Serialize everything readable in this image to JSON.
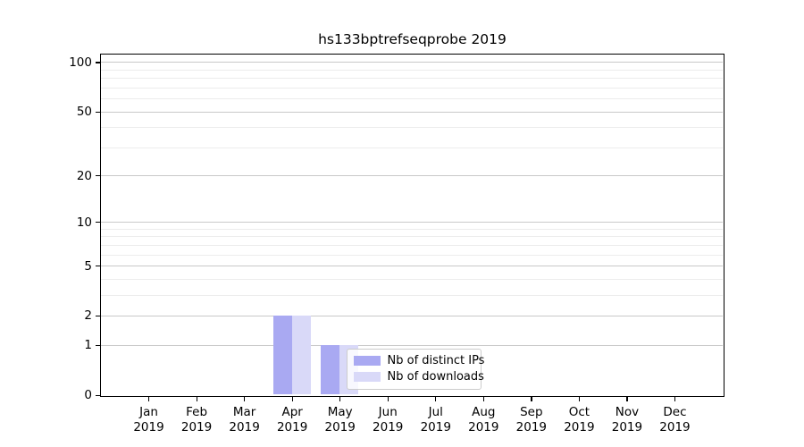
{
  "figure": {
    "background": "#ffffff"
  },
  "chart_data": {
    "type": "bar",
    "title": "hs133bptrefseqprobe 2019",
    "categories": [
      "Jan",
      "Feb",
      "Mar",
      "Apr",
      "May",
      "Jun",
      "Jul",
      "Aug",
      "Sep",
      "Oct",
      "Nov",
      "Dec"
    ],
    "x_year_label": "2019",
    "series": [
      {
        "name": "Nb of distinct IPs",
        "color": "#a9a9f2",
        "values": [
          0,
          0,
          0,
          2,
          1,
          0,
          0,
          0,
          0,
          0,
          0,
          0
        ]
      },
      {
        "name": "Nb of downloads",
        "color": "#d9d9f8",
        "values": [
          0,
          0,
          0,
          2,
          1,
          0,
          0,
          0,
          0,
          0,
          0,
          0
        ]
      }
    ],
    "yscale": "log1p",
    "ylim": [
      0,
      112
    ],
    "y_ticks": [
      0,
      1,
      2,
      5,
      10,
      20,
      50,
      100
    ],
    "y_minor_gridlines": [
      3,
      4,
      6,
      7,
      8,
      9,
      30,
      40,
      60,
      70,
      80,
      90
    ],
    "grid": "horizontal",
    "legend_position": "lower center-right",
    "colors": {
      "grid_major": "#c9c9c9",
      "grid_minor": "#ececec",
      "spine": "#000000",
      "text": "#000000"
    }
  }
}
